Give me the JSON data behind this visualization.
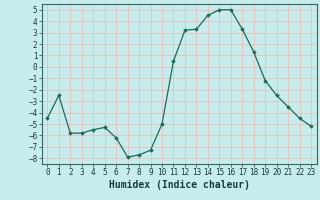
{
  "x": [
    0,
    1,
    2,
    3,
    4,
    5,
    6,
    7,
    8,
    9,
    10,
    11,
    12,
    13,
    14,
    15,
    16,
    17,
    18,
    19,
    20,
    21,
    22,
    23
  ],
  "y": [
    -4.5,
    -2.5,
    -5.8,
    -5.8,
    -5.5,
    -5.3,
    -6.2,
    -7.9,
    -7.7,
    -7.3,
    -5.0,
    0.5,
    3.2,
    3.3,
    4.5,
    5.0,
    5.0,
    3.3,
    1.3,
    -1.2,
    -2.5,
    -3.5,
    -4.5,
    -5.2
  ],
  "line_color": "#1a6b5a",
  "marker": "D",
  "marker_size": 1.8,
  "bg_color": "#c8ecec",
  "grid_color": "#e8b8b8",
  "xlabel": "Humidex (Indice chaleur)",
  "xlim": [
    -0.5,
    23.5
  ],
  "ylim": [
    -8.5,
    5.5
  ],
  "yticks": [
    -8,
    -7,
    -6,
    -5,
    -4,
    -3,
    -2,
    -1,
    0,
    1,
    2,
    3,
    4,
    5
  ],
  "xticks": [
    0,
    1,
    2,
    3,
    4,
    5,
    6,
    7,
    8,
    9,
    10,
    11,
    12,
    13,
    14,
    15,
    16,
    17,
    18,
    19,
    20,
    21,
    22,
    23
  ],
  "tick_fontsize": 5.5,
  "xlabel_fontsize": 7.0,
  "spine_color": "#336666",
  "tick_color": "#1a3a3a"
}
